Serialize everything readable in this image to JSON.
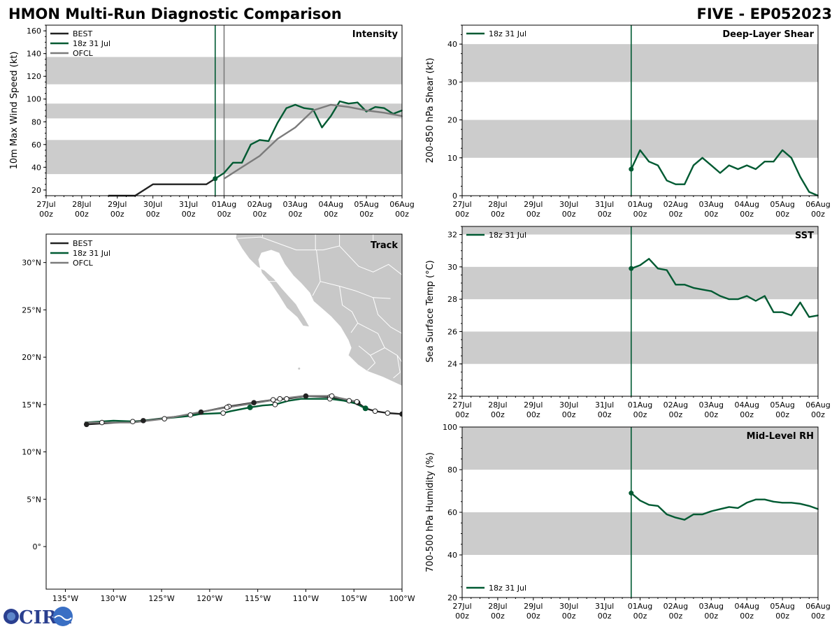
{
  "header": {
    "left_title": "HMON Multi-Run Diagnostic Comparison",
    "right_title": "FIVE - EP052023"
  },
  "logo": {
    "text": "CIRA"
  },
  "colors": {
    "best": "#222222",
    "run": "#005a32",
    "ofcl": "#7b7b7b",
    "band": "#cccccc",
    "land": "#c8c8c8"
  },
  "time_axis": {
    "labels": [
      [
        "27Jul",
        "00z"
      ],
      [
        "28Jul",
        "00z"
      ],
      [
        "29Jul",
        "00z"
      ],
      [
        "30Jul",
        "00z"
      ],
      [
        "31Jul",
        "00z"
      ],
      [
        "01Aug",
        "00z"
      ],
      [
        "02Aug",
        "00z"
      ],
      [
        "03Aug",
        "00z"
      ],
      [
        "04Aug",
        "00z"
      ],
      [
        "05Aug",
        "00z"
      ],
      [
        "06Aug",
        "00z"
      ]
    ],
    "range_days": [
      0,
      10
    ],
    "init_day": 4.75
  },
  "chart_data": [
    {
      "id": "intensity",
      "type": "line",
      "title": "Intensity",
      "ylabel": "10m Max Wind Speed (kt)",
      "ylim": [
        15,
        165
      ],
      "yticks": [
        20,
        40,
        60,
        80,
        100,
        120,
        140,
        160
      ],
      "bands": [
        [
          34,
          64
        ],
        [
          83,
          96
        ],
        [
          113,
          137
        ]
      ],
      "vlines": [
        {
          "day": 4.75,
          "series": "run"
        },
        {
          "day": 5.0,
          "series": "ofcl"
        }
      ],
      "legend": [
        "BEST",
        "18z 31 Jul",
        "OFCL"
      ],
      "series": [
        {
          "name": "BEST",
          "key": "best",
          "x": [
            1.75,
            2.0,
            2.5,
            3.0,
            3.5,
            4.0,
            4.5,
            4.75
          ],
          "y": [
            15,
            15,
            15,
            25,
            25,
            25,
            25,
            30
          ]
        },
        {
          "name": "18z 31 Jul",
          "key": "run",
          "marker_first": true,
          "x": [
            4.75,
            5.0,
            5.25,
            5.5,
            5.75,
            6.0,
            6.25,
            6.5,
            6.75,
            7.0,
            7.25,
            7.5,
            7.75,
            8.0,
            8.25,
            8.5,
            8.75,
            9.0,
            9.25,
            9.5,
            9.75,
            10.0
          ],
          "y": [
            30,
            35,
            44,
            44,
            60,
            64,
            63,
            79,
            92,
            95,
            92,
            91,
            75,
            85,
            98,
            96,
            97,
            89,
            93,
            92,
            87,
            90
          ]
        },
        {
          "name": "OFCL",
          "key": "ofcl",
          "x": [
            5.0,
            5.5,
            6.0,
            6.5,
            7.0,
            7.5,
            8.0,
            8.5,
            9.0,
            9.5,
            10.0
          ],
          "y": [
            30,
            40,
            50,
            65,
            75,
            90,
            95,
            93,
            90,
            88,
            85
          ]
        }
      ]
    },
    {
      "id": "shear",
      "type": "line",
      "title": "Deep-Layer Shear",
      "ylabel": "200-850 hPa Shear (kt)",
      "ylim": [
        0,
        45
      ],
      "yticks": [
        0,
        10,
        20,
        30,
        40
      ],
      "bands": [
        [
          10,
          20
        ],
        [
          30,
          40
        ]
      ],
      "vlines": [
        {
          "day": 4.75,
          "series": "run"
        }
      ],
      "legend": [
        "18z 31 Jul"
      ],
      "series": [
        {
          "name": "18z 31 Jul",
          "key": "run",
          "marker_first": true,
          "x": [
            4.75,
            5.0,
            5.25,
            5.5,
            5.75,
            6.0,
            6.25,
            6.5,
            6.75,
            7.0,
            7.25,
            7.5,
            7.75,
            8.0,
            8.25,
            8.5,
            8.75,
            9.0,
            9.25,
            9.5,
            9.75,
            10.0
          ],
          "y": [
            7,
            12,
            9,
            8,
            4,
            3,
            3,
            8,
            10,
            8,
            6,
            8,
            7,
            8,
            7,
            9,
            9,
            12,
            10,
            5,
            1,
            0
          ]
        }
      ]
    },
    {
      "id": "sst",
      "type": "line",
      "title": "SST",
      "ylabel": "Sea Surface Temp (°C)",
      "ylim": [
        22,
        32.5
      ],
      "yticks": [
        22,
        24,
        26,
        28,
        30,
        32
      ],
      "bands": [
        [
          24,
          26
        ],
        [
          28,
          30
        ],
        [
          32,
          32.5
        ]
      ],
      "vlines": [
        {
          "day": 4.75,
          "series": "run"
        }
      ],
      "legend": [
        "18z 31 Jul"
      ],
      "series": [
        {
          "name": "18z 31 Jul",
          "key": "run",
          "marker_first": true,
          "x": [
            4.75,
            5.0,
            5.25,
            5.5,
            5.75,
            6.0,
            6.25,
            6.5,
            6.75,
            7.0,
            7.25,
            7.5,
            7.75,
            8.0,
            8.25,
            8.5,
            8.75,
            9.0,
            9.25,
            9.5,
            9.75,
            10.0
          ],
          "y": [
            29.9,
            30.1,
            30.5,
            29.9,
            29.8,
            28.9,
            28.9,
            28.7,
            28.6,
            28.5,
            28.2,
            28.0,
            28.0,
            28.2,
            27.9,
            28.2,
            27.2,
            27.2,
            27.0,
            27.8,
            26.9,
            27.0
          ]
        }
      ]
    },
    {
      "id": "rh",
      "type": "line",
      "title": "Mid-Level RH",
      "ylabel": "700-500 hPa Humidity (%)",
      "ylim": [
        20,
        100
      ],
      "yticks": [
        20,
        40,
        60,
        80,
        100
      ],
      "bands": [
        [
          40,
          60
        ],
        [
          80,
          100
        ]
      ],
      "vlines": [
        {
          "day": 4.75,
          "series": "run"
        }
      ],
      "legend": [
        "18z 31 Jul"
      ],
      "series": [
        {
          "name": "18z 31 Jul",
          "key": "run",
          "marker_first": true,
          "x": [
            4.75,
            5.0,
            5.25,
            5.5,
            5.75,
            6.0,
            6.25,
            6.5,
            6.75,
            7.0,
            7.25,
            7.5,
            7.75,
            8.0,
            8.25,
            8.5,
            8.75,
            9.0,
            9.25,
            9.5,
            9.75,
            10.0
          ],
          "y": [
            69,
            65.5,
            63.5,
            63,
            59,
            57.5,
            56.5,
            59,
            59,
            60.5,
            61.5,
            62.5,
            62,
            64.5,
            66,
            66,
            65,
            64.5,
            64.5,
            64,
            63,
            61.5
          ]
        }
      ]
    },
    {
      "id": "track",
      "type": "scatter",
      "title": "Track",
      "xlim": [
        -137,
        -100
      ],
      "ylim": [
        -4.5,
        33
      ],
      "xticks": [
        -135,
        -130,
        -125,
        -120,
        -115,
        -110,
        -105,
        -100
      ],
      "xtick_labels": [
        "135°W",
        "130°W",
        "125°W",
        "120°W",
        "115°W",
        "110°W",
        "105°W",
        "100°W"
      ],
      "yticks": [
        0,
        5,
        10,
        15,
        20,
        25,
        30
      ],
      "ytick_labels": [
        "0°",
        "5°N",
        "10°N",
        "15°N",
        "20°N",
        "25°N",
        "30°N"
      ],
      "legend": [
        "BEST",
        "18z 31 Jul",
        "OFCL"
      ],
      "series": [
        {
          "name": "BEST",
          "key": "best",
          "lon": [
            -100.0,
            -101.5,
            -102.8,
            -103.8,
            -104.6,
            -105.5,
            -107.5,
            -110.0,
            -112.0,
            -113.4,
            -115.4,
            -118.0,
            -120.9,
            -122.0,
            -126.9,
            -128.0,
            -132.8
          ],
          "lat": [
            14.0,
            14.1,
            14.3,
            14.6,
            15.2,
            15.4,
            15.8,
            15.9,
            15.6,
            15.5,
            15.2,
            14.8,
            14.2,
            13.9,
            13.3,
            13.2,
            12.9
          ],
          "filled": [
            true,
            false,
            false,
            true,
            true,
            false,
            false,
            true,
            false,
            false,
            true,
            false,
            true,
            false,
            true,
            false,
            true
          ]
        },
        {
          "name": "18z 31 Jul",
          "key": "run",
          "lon": [
            -103.8,
            -104.8,
            -106.0,
            -107.5,
            -108.5,
            -110.5,
            -111.8,
            -113.2,
            -114.5,
            -115.8,
            -117.8,
            -118.6,
            -121.0,
            -122.0,
            -125.0,
            -127.5,
            -130.0,
            -133.0
          ],
          "lat": [
            14.6,
            15.1,
            15.4,
            15.6,
            15.6,
            15.6,
            15.4,
            15.0,
            14.9,
            14.7,
            14.3,
            14.1,
            14.0,
            13.8,
            13.5,
            13.2,
            13.3,
            13.1
          ],
          "markers_filled": [
            -103.8,
            -115.8
          ],
          "markers_open": [
            -107.5,
            -113.2,
            -118.6
          ]
        },
        {
          "name": "OFCL",
          "key": "ofcl",
          "lon": [
            -104.7,
            -106.5,
            -107.3,
            -108.5,
            -110.2,
            -112.7,
            -115.0,
            -118.2,
            -121.0,
            -124.7,
            -128.0,
            -131.2,
            -133.0
          ],
          "lat": [
            15.3,
            15.7,
            15.9,
            15.9,
            15.9,
            15.6,
            15.2,
            14.7,
            14.2,
            13.5,
            13.1,
            13.1,
            13.1
          ],
          "markers_open": [
            -104.7,
            -107.3,
            -112.7,
            -118.2,
            -124.7,
            -131.2
          ]
        }
      ]
    }
  ]
}
